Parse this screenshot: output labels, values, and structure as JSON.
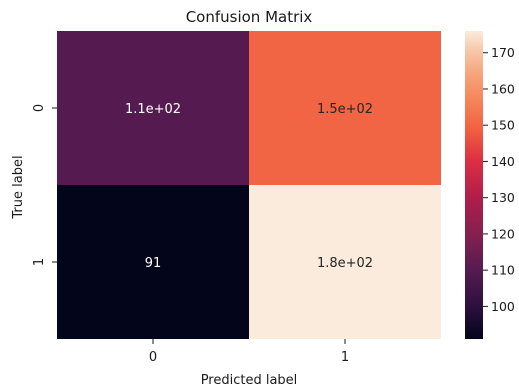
{
  "chart_data": {
    "type": "heatmap",
    "title": "Confusion Matrix",
    "xlabel": "Predicted label",
    "ylabel": "True label",
    "x_categories": [
      "0",
      "1"
    ],
    "y_categories": [
      "0",
      "1"
    ],
    "values": [
      [
        110,
        150
      ],
      [
        91,
        180
      ]
    ],
    "annotations": [
      [
        "1.1e+02",
        "1.5e+02"
      ],
      [
        "91",
        "1.8e+02"
      ]
    ],
    "colorbar": {
      "range": [
        91,
        176
      ],
      "ticks": [
        100,
        110,
        120,
        130,
        140,
        150,
        160,
        170
      ],
      "colormap": "rocket",
      "low_color": "#03051a",
      "high_color": "#faebdd"
    }
  }
}
